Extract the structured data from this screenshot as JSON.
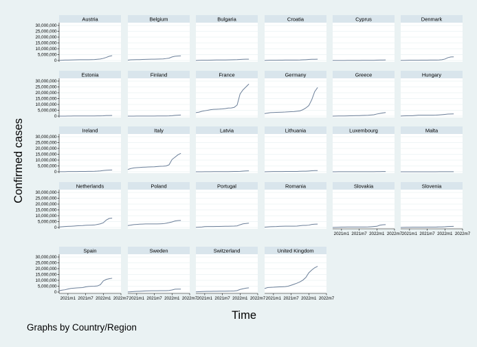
{
  "chart_data": {
    "type": "line",
    "title": "",
    "xlabel": "Time",
    "ylabel": "Confirmed cases",
    "note": "Graphs by Country/Region",
    "ylim": [
      0,
      30000000
    ],
    "y_ticks": [
      0,
      5000000,
      10000000,
      15000000,
      20000000,
      25000000,
      30000000
    ],
    "y_tick_labels": [
      "0",
      "5,000,000",
      "10,000,000",
      "15,000,000",
      "20,000,000",
      "25,000,000",
      "30,000,000"
    ],
    "x_ticks": [
      "2021m1",
      "2021m7",
      "2022m1",
      "2022m7"
    ],
    "x_tick_labels": [
      "2021m1",
      "2021m7",
      "2022m1",
      "2022m7"
    ],
    "x": [
      "2020m10",
      "2020m11",
      "2020m12",
      "2021m1",
      "2021m2",
      "2021m3",
      "2021m4",
      "2021m5",
      "2021m6",
      "2021m7",
      "2021m8",
      "2021m9",
      "2021m10",
      "2021m11",
      "2021m12",
      "2022m1",
      "2022m2",
      "2022m3",
      "2022m4"
    ],
    "layout": "facets by country, 6 columns, 5 rows, reading left-to-right",
    "grid": true,
    "line_color": "#6a7e98",
    "panel_header_color": "#d9e5ec",
    "background_color": "#eaf2f3",
    "panels": [
      {
        "name": "Austria",
        "values": [
          70000,
          240000,
          360000,
          400000,
          440000,
          500000,
          580000,
          640000,
          650000,
          655000,
          670000,
          720000,
          780000,
          1050000,
          1270000,
          1800000,
          2600000,
          3600000,
          4100000
        ]
      },
      {
        "name": "Belgium",
        "values": [
          280000,
          560000,
          640000,
          700000,
          760000,
          860000,
          960000,
          1040000,
          1080000,
          1110000,
          1160000,
          1220000,
          1300000,
          1650000,
          2000000,
          3000000,
          3600000,
          3800000,
          4000000
        ]
      },
      {
        "name": "Bulgaria",
        "values": [
          30000,
          120000,
          200000,
          220000,
          240000,
          300000,
          400000,
          420000,
          422000,
          423000,
          430000,
          480000,
          560000,
          680000,
          740000,
          900000,
          1050000,
          1100000,
          1130000
        ]
      },
      {
        "name": "Croatia",
        "values": [
          30000,
          110000,
          210000,
          230000,
          240000,
          260000,
          320000,
          350000,
          360000,
          362000,
          365000,
          380000,
          430000,
          560000,
          680000,
          850000,
          1000000,
          1050000,
          1100000
        ]
      },
      {
        "name": "Cyprus",
        "values": [
          3000,
          10000,
          20000,
          30000,
          33000,
          45000,
          65000,
          72000,
          75000,
          100000,
          115000,
          120000,
          122000,
          130000,
          180000,
          290000,
          340000,
          380000,
          430000
        ]
      },
      {
        "name": "Denmark",
        "values": [
          40000,
          75000,
          160000,
          200000,
          210000,
          225000,
          250000,
          275000,
          292000,
          305000,
          340000,
          355000,
          370000,
          440000,
          650000,
          1200000,
          2400000,
          3000000,
          3100000
        ]
      },
      {
        "name": "Estonia",
        "values": [
          4000,
          12000,
          28000,
          45000,
          70000,
          110000,
          123000,
          128000,
          131000,
          133000,
          140000,
          155000,
          185000,
          220000,
          235000,
          300000,
          480000,
          540000,
          560000
        ]
      },
      {
        "name": "Finland",
        "values": [
          15000,
          25000,
          37000,
          44000,
          55000,
          76000,
          86000,
          92000,
          95000,
          105000,
          125000,
          140000,
          155000,
          180000,
          230000,
          380000,
          640000,
          830000,
          950000
        ]
      },
      {
        "name": "France",
        "values": [
          3000000,
          3400000,
          4100000,
          4600000,
          5000000,
          5500000,
          5800000,
          5900000,
          6000000,
          6200000,
          6500000,
          6900000,
          7000000,
          7500000,
          9500000,
          19000000,
          22500000,
          25000000,
          27500000
        ]
      },
      {
        "name": "Germany",
        "values": [
          2200000,
          2600000,
          3000000,
          3100000,
          3200000,
          3300000,
          3400000,
          3500000,
          3700000,
          3800000,
          3900000,
          4200000,
          4500000,
          5500000,
          7000000,
          9000000,
          14000000,
          21000000,
          24500000
        ]
      },
      {
        "name": "Greece",
        "values": [
          30000,
          100000,
          140000,
          155000,
          180000,
          240000,
          330000,
          400000,
          420000,
          470000,
          560000,
          650000,
          730000,
          950000,
          1200000,
          1800000,
          2300000,
          2700000,
          3100000
        ]
      },
      {
        "name": "Hungary",
        "values": [
          60000,
          200000,
          320000,
          370000,
          400000,
          620000,
          780000,
          805000,
          808000,
          810000,
          815000,
          825000,
          860000,
          1050000,
          1250000,
          1500000,
          1750000,
          1850000,
          1900000
        ]
      },
      {
        "name": "Ireland",
        "values": [
          50000,
          70000,
          85000,
          200000,
          215000,
          235000,
          250000,
          265000,
          275000,
          310000,
          350000,
          390000,
          440000,
          550000,
          760000,
          1100000,
          1300000,
          1450000,
          1520000
        ]
      },
      {
        "name": "Italy",
        "values": [
          2000000,
          2800000,
          3300000,
          3500000,
          3700000,
          3900000,
          4000000,
          4100000,
          4200000,
          4300000,
          4500000,
          4700000,
          4800000,
          5000000,
          6000000,
          10500000,
          12500000,
          14500000,
          15800000
        ]
      },
      {
        "name": "Latvia",
        "values": [
          5000,
          15000,
          35000,
          60000,
          85000,
          100000,
          120000,
          135000,
          137000,
          138000,
          140000,
          150000,
          210000,
          260000,
          280000,
          400000,
          600000,
          750000,
          820000
        ]
      },
      {
        "name": "Lithuania",
        "values": [
          10000,
          50000,
          135000,
          190000,
          200000,
          215000,
          245000,
          275000,
          278000,
          280000,
          290000,
          330000,
          410000,
          490000,
          530000,
          680000,
          880000,
          1000000,
          1050000
        ]
      },
      {
        "name": "Luxembourg",
        "values": [
          10000,
          30000,
          45000,
          50000,
          53000,
          60000,
          65000,
          69000,
          70000,
          72000,
          75000,
          77000,
          80000,
          88000,
          98000,
          140000,
          180000,
          200000,
          215000
        ]
      },
      {
        "name": "Malta",
        "values": [
          4000,
          9000,
          12000,
          17000,
          20000,
          29000,
          30000,
          30500,
          30600,
          34000,
          36000,
          37000,
          37500,
          39000,
          46000,
          62000,
          70000,
          74000,
          81000
        ]
      },
      {
        "name": "Netherlands",
        "values": [
          350000,
          550000,
          800000,
          950000,
          1050000,
          1200000,
          1400000,
          1550000,
          1650000,
          1850000,
          1950000,
          2000000,
          2100000,
          2600000,
          3100000,
          4000000,
          6300000,
          7700000,
          8000000
        ]
      },
      {
        "name": "Poland",
        "values": [
          1600000,
          2000000,
          2400000,
          2600000,
          2800000,
          2900000,
          3000000,
          3000000,
          3000000,
          3000000,
          3000000,
          3100000,
          3200000,
          3600000,
          4100000,
          4700000,
          5500000,
          5900000,
          6000000
        ]
      },
      {
        "name": "Portugal",
        "values": [
          100000,
          250000,
          400000,
          700000,
          800000,
          820000,
          840000,
          850000,
          880000,
          950000,
          1000000,
          1050000,
          1080000,
          1150000,
          1350000,
          2300000,
          3100000,
          3400000,
          3700000
        ]
      },
      {
        "name": "Romania",
        "values": [
          200000,
          450000,
          630000,
          720000,
          800000,
          950000,
          1060000,
          1080000,
          1081000,
          1082000,
          1085000,
          1150000,
          1500000,
          1780000,
          1800000,
          1950000,
          2600000,
          2800000,
          2850000
        ]
      },
      {
        "name": "Slovakia",
        "values": [
          30000,
          100000,
          180000,
          260000,
          330000,
          380000,
          390000,
          391000,
          392000,
          393000,
          395000,
          400000,
          430000,
          600000,
          800000,
          1000000,
          1900000,
          2300000,
          2450000
        ]
      },
      {
        "name": "Slovenia",
        "values": [
          30000,
          75000,
          120000,
          170000,
          190000,
          210000,
          240000,
          250000,
          255000,
          258000,
          262000,
          280000,
          320000,
          420000,
          450000,
          550000,
          800000,
          920000,
          980000
        ]
      },
      {
        "name": "Spain",
        "values": [
          1100000,
          1600000,
          1950000,
          2600000,
          3100000,
          3300000,
          3500000,
          3650000,
          3800000,
          4400000,
          4800000,
          4950000,
          5000000,
          5200000,
          6300000,
          9500000,
          10800000,
          11400000,
          11800000
        ]
      },
      {
        "name": "Sweden",
        "values": [
          100000,
          250000,
          420000,
          550000,
          650000,
          800000,
          950000,
          1050000,
          1090000,
          1100000,
          1120000,
          1150000,
          1160000,
          1180000,
          1300000,
          1750000,
          2400000,
          2480000,
          2500000
        ]
      },
      {
        "name": "Switzerland",
        "values": [
          120000,
          300000,
          430000,
          520000,
          550000,
          580000,
          640000,
          680000,
          700000,
          710000,
          760000,
          820000,
          850000,
          950000,
          1250000,
          2200000,
          2800000,
          3300000,
          3600000
        ]
      },
      {
        "name": "United Kingdom",
        "values": [
          3000000,
          3800000,
          4000000,
          4100000,
          4300000,
          4400000,
          4500000,
          4600000,
          5000000,
          5800000,
          6700000,
          7600000,
          8700000,
          10200000,
          12500000,
          16500000,
          18800000,
          20800000,
          22000000
        ]
      }
    ]
  }
}
